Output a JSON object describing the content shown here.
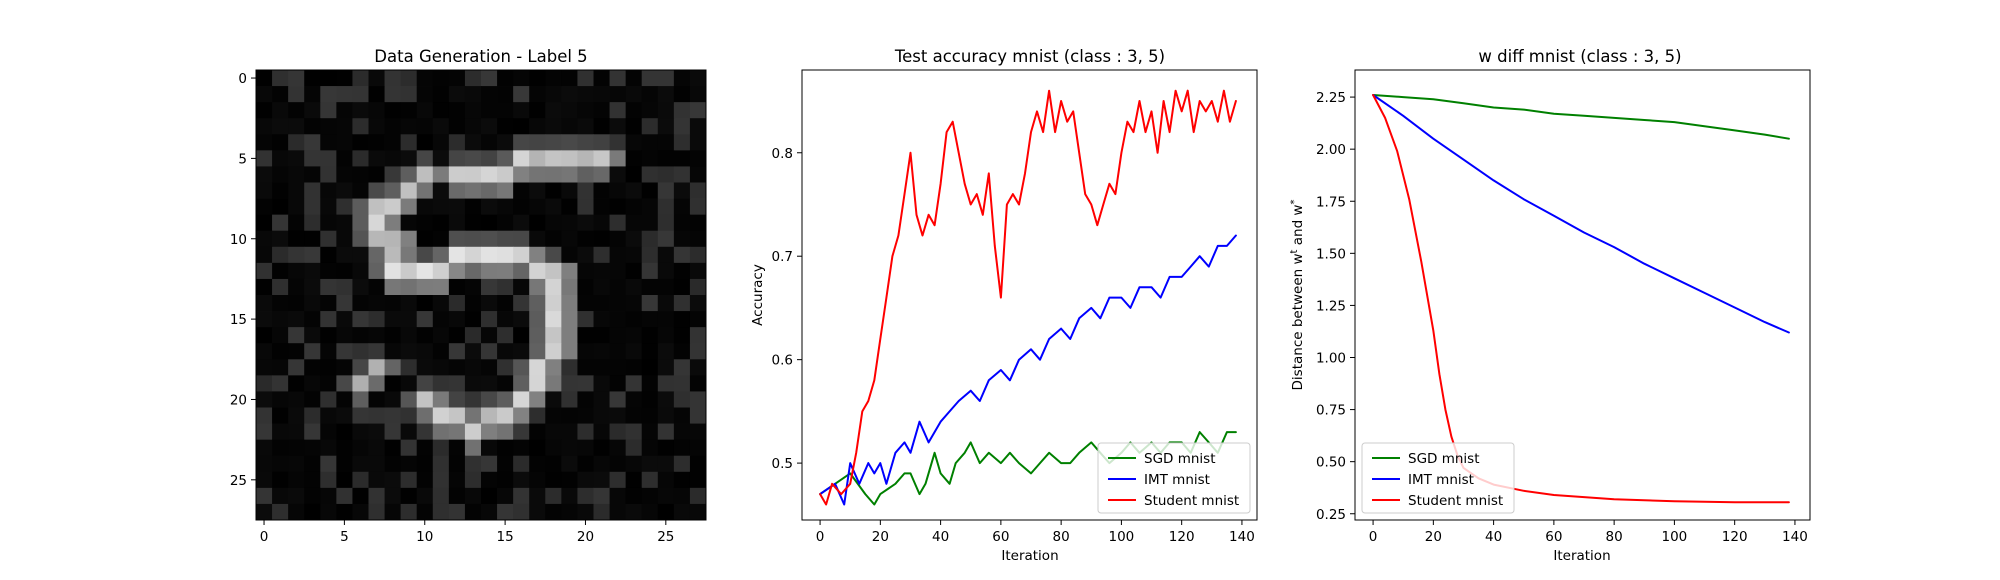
{
  "chart_data": [
    {
      "type": "heatmap",
      "title": "Data Generation - Label 5",
      "xlabel": "",
      "ylabel": "",
      "size": 28,
      "xticks": [
        0,
        5,
        10,
        15,
        20,
        25
      ],
      "yticks": [
        0,
        5,
        10,
        15,
        20,
        25
      ],
      "colormap": "gray",
      "bright_strokes": [
        [
          6,
          12,
          5,
          19,
          0.85
        ],
        [
          5,
          17,
          5,
          21,
          0.8
        ],
        [
          6,
          10,
          9,
          7,
          0.85
        ],
        [
          8,
          7,
          12,
          8,
          0.85
        ],
        [
          12,
          8,
          11,
          15,
          0.9
        ],
        [
          11,
          15,
          12,
          18,
          0.85
        ],
        [
          12,
          18,
          17,
          18,
          0.85
        ],
        [
          17,
          18,
          20,
          16,
          0.85
        ],
        [
          20,
          16,
          22,
          13,
          0.85
        ],
        [
          22,
          13,
          20,
          10,
          0.85
        ],
        [
          19,
          6,
          18,
          7,
          0.7
        ]
      ]
    },
    {
      "type": "line",
      "title": "Test accuracy mnist (class : 3, 5)",
      "xlabel": "Iteration",
      "ylabel": "Accuracy",
      "xlim": [
        -6,
        145
      ],
      "ylim": [
        0.445,
        0.88
      ],
      "xticks": [
        0,
        20,
        40,
        60,
        80,
        100,
        120,
        140
      ],
      "yticks": [
        0.5,
        0.6,
        0.7,
        0.8
      ],
      "legend_position": "lower-right",
      "series": [
        {
          "name": "SGD mnist",
          "color": "#008000",
          "points": [
            [
              0,
              0.47
            ],
            [
              5,
              0.48
            ],
            [
              10,
              0.49
            ],
            [
              15,
              0.47
            ],
            [
              18,
              0.46
            ],
            [
              20,
              0.47
            ],
            [
              25,
              0.48
            ],
            [
              28,
              0.49
            ],
            [
              30,
              0.49
            ],
            [
              33,
              0.47
            ],
            [
              35,
              0.48
            ],
            [
              38,
              0.51
            ],
            [
              40,
              0.49
            ],
            [
              43,
              0.48
            ],
            [
              45,
              0.5
            ],
            [
              48,
              0.51
            ],
            [
              50,
              0.52
            ],
            [
              53,
              0.5
            ],
            [
              56,
              0.51
            ],
            [
              60,
              0.5
            ],
            [
              63,
              0.51
            ],
            [
              66,
              0.5
            ],
            [
              70,
              0.49
            ],
            [
              73,
              0.5
            ],
            [
              76,
              0.51
            ],
            [
              80,
              0.5
            ],
            [
              83,
              0.5
            ],
            [
              86,
              0.51
            ],
            [
              90,
              0.52
            ],
            [
              93,
              0.51
            ],
            [
              96,
              0.5
            ],
            [
              100,
              0.51
            ],
            [
              103,
              0.52
            ],
            [
              106,
              0.51
            ],
            [
              110,
              0.52
            ],
            [
              113,
              0.51
            ],
            [
              116,
              0.52
            ],
            [
              120,
              0.52
            ],
            [
              123,
              0.51
            ],
            [
              126,
              0.53
            ],
            [
              129,
              0.52
            ],
            [
              132,
              0.51
            ],
            [
              135,
              0.53
            ],
            [
              138,
              0.53
            ]
          ]
        },
        {
          "name": "IMT mnist",
          "color": "#0000ff",
          "points": [
            [
              0,
              0.47
            ],
            [
              5,
              0.48
            ],
            [
              8,
              0.46
            ],
            [
              10,
              0.5
            ],
            [
              13,
              0.48
            ],
            [
              16,
              0.5
            ],
            [
              18,
              0.49
            ],
            [
              20,
              0.5
            ],
            [
              22,
              0.48
            ],
            [
              25,
              0.51
            ],
            [
              28,
              0.52
            ],
            [
              30,
              0.51
            ],
            [
              33,
              0.54
            ],
            [
              36,
              0.52
            ],
            [
              40,
              0.54
            ],
            [
              43,
              0.55
            ],
            [
              46,
              0.56
            ],
            [
              50,
              0.57
            ],
            [
              53,
              0.56
            ],
            [
              56,
              0.58
            ],
            [
              60,
              0.59
            ],
            [
              63,
              0.58
            ],
            [
              66,
              0.6
            ],
            [
              70,
              0.61
            ],
            [
              73,
              0.6
            ],
            [
              76,
              0.62
            ],
            [
              80,
              0.63
            ],
            [
              83,
              0.62
            ],
            [
              86,
              0.64
            ],
            [
              90,
              0.65
            ],
            [
              93,
              0.64
            ],
            [
              96,
              0.66
            ],
            [
              100,
              0.66
            ],
            [
              103,
              0.65
            ],
            [
              106,
              0.67
            ],
            [
              110,
              0.67
            ],
            [
              113,
              0.66
            ],
            [
              116,
              0.68
            ],
            [
              120,
              0.68
            ],
            [
              123,
              0.69
            ],
            [
              126,
              0.7
            ],
            [
              129,
              0.69
            ],
            [
              132,
              0.71
            ],
            [
              135,
              0.71
            ],
            [
              138,
              0.72
            ]
          ]
        },
        {
          "name": "Student mnist",
          "color": "#ff0000",
          "points": [
            [
              0,
              0.47
            ],
            [
              2,
              0.46
            ],
            [
              4,
              0.48
            ],
            [
              7,
              0.47
            ],
            [
              10,
              0.48
            ],
            [
              12,
              0.51
            ],
            [
              14,
              0.55
            ],
            [
              16,
              0.56
            ],
            [
              18,
              0.58
            ],
            [
              20,
              0.62
            ],
            [
              22,
              0.66
            ],
            [
              24,
              0.7
            ],
            [
              26,
              0.72
            ],
            [
              28,
              0.76
            ],
            [
              30,
              0.8
            ],
            [
              32,
              0.74
            ],
            [
              34,
              0.72
            ],
            [
              36,
              0.74
            ],
            [
              38,
              0.73
            ],
            [
              40,
              0.77
            ],
            [
              42,
              0.82
            ],
            [
              44,
              0.83
            ],
            [
              46,
              0.8
            ],
            [
              48,
              0.77
            ],
            [
              50,
              0.75
            ],
            [
              52,
              0.76
            ],
            [
              54,
              0.74
            ],
            [
              56,
              0.78
            ],
            [
              58,
              0.71
            ],
            [
              60,
              0.66
            ],
            [
              62,
              0.75
            ],
            [
              64,
              0.76
            ],
            [
              66,
              0.75
            ],
            [
              68,
              0.78
            ],
            [
              70,
              0.82
            ],
            [
              72,
              0.84
            ],
            [
              74,
              0.82
            ],
            [
              76,
              0.86
            ],
            [
              78,
              0.82
            ],
            [
              80,
              0.85
            ],
            [
              82,
              0.83
            ],
            [
              84,
              0.84
            ],
            [
              86,
              0.8
            ],
            [
              88,
              0.76
            ],
            [
              90,
              0.75
            ],
            [
              92,
              0.73
            ],
            [
              94,
              0.75
            ],
            [
              96,
              0.77
            ],
            [
              98,
              0.76
            ],
            [
              100,
              0.8
            ],
            [
              102,
              0.83
            ],
            [
              104,
              0.82
            ],
            [
              106,
              0.85
            ],
            [
              108,
              0.82
            ],
            [
              110,
              0.84
            ],
            [
              112,
              0.8
            ],
            [
              114,
              0.85
            ],
            [
              116,
              0.82
            ],
            [
              118,
              0.86
            ],
            [
              120,
              0.84
            ],
            [
              122,
              0.86
            ],
            [
              124,
              0.82
            ],
            [
              126,
              0.85
            ],
            [
              128,
              0.84
            ],
            [
              130,
              0.85
            ],
            [
              132,
              0.83
            ],
            [
              134,
              0.86
            ],
            [
              136,
              0.83
            ],
            [
              138,
              0.85
            ]
          ]
        }
      ]
    },
    {
      "type": "line",
      "title": "w diff mnist (class : 3, 5)",
      "xlabel": "Iteration",
      "ylabel_prefix": "Distance between w",
      "ylabel_sup1": "t",
      "ylabel_middle": " and w",
      "ylabel_sup2": "*",
      "xlim": [
        -6,
        145
      ],
      "ylim": [
        0.22,
        2.38
      ],
      "xticks": [
        0,
        20,
        40,
        60,
        80,
        100,
        120,
        140
      ],
      "yticks": [
        0.25,
        0.5,
        0.75,
        1.0,
        1.25,
        1.5,
        1.75,
        2.0,
        2.25
      ],
      "ytick_labels": [
        "0.25",
        "0.50",
        "0.75",
        "1.00",
        "1.25",
        "1.50",
        "1.75",
        "2.00",
        "2.25"
      ],
      "legend_position": "lower-left",
      "series": [
        {
          "name": "SGD mnist",
          "color": "#008000",
          "points": [
            [
              0,
              2.26
            ],
            [
              10,
              2.25
            ],
            [
              20,
              2.24
            ],
            [
              30,
              2.22
            ],
            [
              40,
              2.2
            ],
            [
              50,
              2.19
            ],
            [
              60,
              2.17
            ],
            [
              70,
              2.16
            ],
            [
              80,
              2.15
            ],
            [
              90,
              2.14
            ],
            [
              100,
              2.13
            ],
            [
              110,
              2.11
            ],
            [
              120,
              2.09
            ],
            [
              130,
              2.07
            ],
            [
              138,
              2.05
            ]
          ]
        },
        {
          "name": "IMT mnist",
          "color": "#0000ff",
          "points": [
            [
              0,
              2.26
            ],
            [
              10,
              2.16
            ],
            [
              20,
              2.05
            ],
            [
              30,
              1.95
            ],
            [
              40,
              1.85
            ],
            [
              50,
              1.76
            ],
            [
              60,
              1.68
            ],
            [
              70,
              1.6
            ],
            [
              80,
              1.53
            ],
            [
              90,
              1.45
            ],
            [
              100,
              1.38
            ],
            [
              110,
              1.31
            ],
            [
              120,
              1.24
            ],
            [
              130,
              1.17
            ],
            [
              138,
              1.12
            ]
          ]
        },
        {
          "name": "Student mnist",
          "color": "#ff0000",
          "points": [
            [
              0,
              2.26
            ],
            [
              4,
              2.15
            ],
            [
              8,
              1.99
            ],
            [
              12,
              1.76
            ],
            [
              16,
              1.46
            ],
            [
              20,
              1.13
            ],
            [
              22,
              0.92
            ],
            [
              24,
              0.75
            ],
            [
              26,
              0.62
            ],
            [
              28,
              0.53
            ],
            [
              30,
              0.47
            ],
            [
              35,
              0.42
            ],
            [
              40,
              0.39
            ],
            [
              50,
              0.36
            ],
            [
              60,
              0.34
            ],
            [
              70,
              0.33
            ],
            [
              80,
              0.32
            ],
            [
              100,
              0.31
            ],
            [
              120,
              0.305
            ],
            [
              138,
              0.305
            ]
          ]
        }
      ]
    }
  ]
}
